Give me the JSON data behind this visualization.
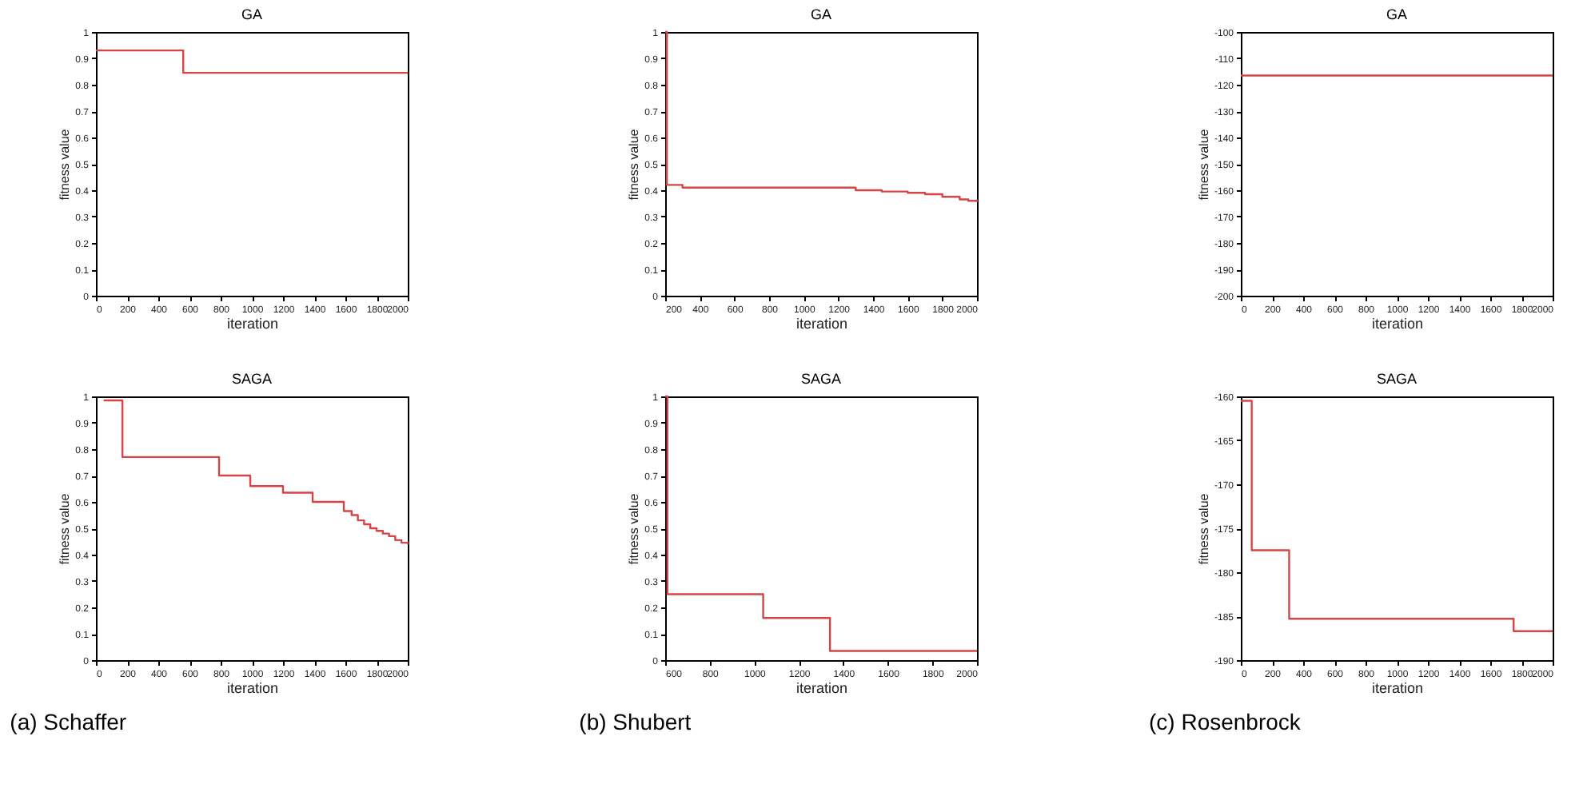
{
  "chart_data": [
    {
      "type": "step",
      "title": "GA",
      "xlabel": "iteration",
      "ylabel": "fitness value",
      "x": [
        0,
        560,
        2000
      ],
      "values": [
        0.93,
        0.845,
        0.845
      ],
      "color": "#d64545",
      "xlim": [
        0,
        2000
      ],
      "xticks": [
        0,
        200,
        400,
        600,
        800,
        1000,
        1200,
        1400,
        1600,
        1800,
        2000
      ],
      "ylim": [
        0,
        1
      ],
      "yticks": [
        0,
        0.1,
        0.2,
        0.3,
        0.4,
        0.5,
        0.6,
        0.7,
        0.8,
        0.9,
        1
      ]
    },
    {
      "type": "step",
      "title": "GA",
      "xlabel": "iteration",
      "ylabel": "fitness value",
      "x": [
        200,
        210,
        300,
        1300,
        1450,
        1600,
        1700,
        1800,
        1900,
        1950,
        2000
      ],
      "values": [
        1,
        0.42,
        0.41,
        0.4,
        0.395,
        0.39,
        0.385,
        0.375,
        0.365,
        0.36,
        0.355
      ],
      "color": "#d64545",
      "xlim": [
        200,
        2000
      ],
      "xticks": [
        200,
        400,
        600,
        800,
        1000,
        1200,
        1400,
        1600,
        1800,
        2000
      ],
      "ylim": [
        0,
        1
      ],
      "yticks": [
        0,
        0.1,
        0.2,
        0.3,
        0.4,
        0.5,
        0.6,
        0.7,
        0.8,
        0.9,
        1
      ]
    },
    {
      "type": "step",
      "title": "GA",
      "xlabel": "iteration",
      "ylabel": "fitness value",
      "x": [
        0,
        2000
      ],
      "values": [
        -116.5,
        -116.5
      ],
      "color": "#d64545",
      "xlim": [
        0,
        2000
      ],
      "xticks": [
        0,
        200,
        400,
        600,
        800,
        1000,
        1200,
        1400,
        1600,
        1800,
        2000
      ],
      "ylim": [
        -200,
        -100
      ],
      "yticks": [
        -200,
        -190,
        -180,
        -170,
        -160,
        -150,
        -140,
        -130,
        -120,
        -110,
        -100
      ]
    },
    {
      "type": "step",
      "title": "SAGA",
      "xlabel": "iteration",
      "ylabel": "fitness value",
      "x": [
        50,
        170,
        790,
        990,
        1200,
        1390,
        1590,
        1640,
        1680,
        1720,
        1760,
        1800,
        1840,
        1880,
        1920,
        1960,
        2000
      ],
      "values": [
        0.985,
        0.77,
        0.7,
        0.66,
        0.635,
        0.6,
        0.565,
        0.55,
        0.53,
        0.515,
        0.5,
        0.49,
        0.48,
        0.47,
        0.455,
        0.445,
        0.44
      ],
      "color": "#d64545",
      "xlim": [
        0,
        2000
      ],
      "xticks": [
        0,
        200,
        400,
        600,
        800,
        1000,
        1200,
        1400,
        1600,
        1800,
        2000
      ],
      "ylim": [
        0,
        1
      ],
      "yticks": [
        0,
        0.1,
        0.2,
        0.3,
        0.4,
        0.5,
        0.6,
        0.7,
        0.8,
        0.9,
        1
      ],
      "annotations": [
        "(a) Schaffer"
      ]
    },
    {
      "type": "step",
      "title": "SAGA",
      "xlabel": "iteration",
      "ylabel": "fitness value",
      "x": [
        600,
        610,
        1040,
        1340,
        2000
      ],
      "values": [
        1,
        0.25,
        0.16,
        0.035,
        0.035
      ],
      "color": "#d64545",
      "xlim": [
        600,
        2000
      ],
      "xticks": [
        600,
        800,
        1000,
        1200,
        1400,
        1600,
        1800,
        2000
      ],
      "ylim": [
        0,
        1
      ],
      "yticks": [
        0,
        0.1,
        0.2,
        0.3,
        0.4,
        0.5,
        0.6,
        0.7,
        0.8,
        0.9,
        1
      ],
      "annotations": [
        "(b) Shubert"
      ]
    },
    {
      "type": "step",
      "title": "SAGA",
      "xlabel": "iteration",
      "ylabel": "fitness value",
      "x": [
        0,
        70,
        310,
        1750,
        2000
      ],
      "values": [
        -160.5,
        -177.5,
        -185.3,
        -186.7,
        -186.7
      ],
      "color": "#d64545",
      "xlim": [
        0,
        2000
      ],
      "xticks": [
        0,
        200,
        400,
        600,
        800,
        1000,
        1200,
        1400,
        1600,
        1800,
        2000
      ],
      "ylim": [
        -190,
        -160
      ],
      "yticks": [
        -190,
        -185,
        -180,
        -175,
        -170,
        -165,
        -160
      ],
      "annotations": [
        "(c) Rosenbrock"
      ]
    }
  ]
}
